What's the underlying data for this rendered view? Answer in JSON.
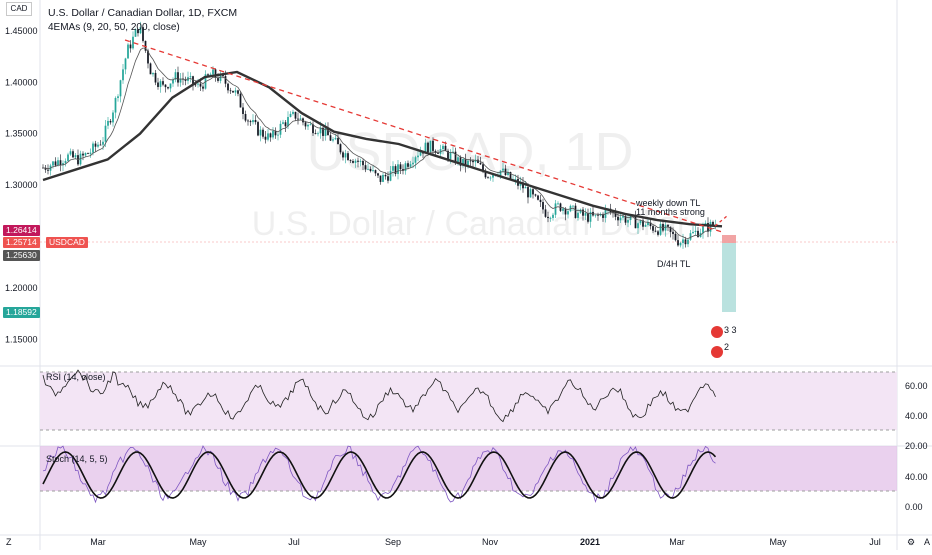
{
  "header": {
    "currency_badge": "CAD",
    "symbol_line": "U.S. Dollar / Canadian Dollar, 1D, FXCM",
    "indicator_line": "4EMAs (9, 20, 50, 200, close)"
  },
  "watermark": {
    "ticker": "USDCAD, 1D",
    "name": "U.S. Dollar / Canadian Dollar"
  },
  "price_badges": [
    {
      "label": "1.26414",
      "color": "#c2185b"
    },
    {
      "label": "1.25714",
      "color": "#ef5350"
    },
    {
      "label": "USDCAD",
      "color": "#ef5350"
    },
    {
      "label": "1.25630",
      "color": "#555555"
    },
    {
      "label": "1.18592",
      "color": "#26a69a"
    }
  ],
  "annotations": {
    "weekly_down": "weekly down TL",
    "months_strong": "11 months strong",
    "d4h": "D/4H TL"
  },
  "event_flags": {
    "top": "3 3",
    "bottom": "2"
  },
  "rsi": {
    "label": "RSI (14, close)",
    "ticks": [
      "60.00",
      "40.00",
      "20.00"
    ]
  },
  "stoch": {
    "label": "Stoch (14, 5, 5)",
    "ticks": [
      "40.00",
      "0.00"
    ]
  },
  "bottom_icons": {
    "left": "Z",
    "right_a": "⚙",
    "right_b": "A"
  },
  "colors": {
    "up": "#26a69a",
    "down": "#131722",
    "ema200": "#333333",
    "trend": "#e53935",
    "rsi_band": "#f3e5f5",
    "stoch_band": "#e1bee7"
  },
  "chart_data": {
    "type": "candlestick",
    "title": "U.S. Dollar / Canadian Dollar, 1D, FXCM",
    "ylim": [
      1.13,
      1.48
    ],
    "y_ticks": [
      "1.45000",
      "1.40000",
      "1.35000",
      "1.30000",
      "1.20000",
      "1.15000"
    ],
    "x_ticks": [
      "Mar",
      "May",
      "Jul",
      "Sep",
      "Nov",
      "2021",
      "Mar",
      "May",
      "Jul"
    ],
    "close_path": [
      1.317,
      1.322,
      1.328,
      1.325,
      1.333,
      1.345,
      1.38,
      1.43,
      1.455,
      1.41,
      1.395,
      1.405,
      1.402,
      1.395,
      1.408,
      1.402,
      1.39,
      1.365,
      1.352,
      1.345,
      1.36,
      1.368,
      1.358,
      1.355,
      1.345,
      1.332,
      1.325,
      1.317,
      1.305,
      1.312,
      1.318,
      1.33,
      1.338,
      1.335,
      1.328,
      1.32,
      1.322,
      1.31,
      1.315,
      1.305,
      1.298,
      1.285,
      1.272,
      1.28,
      1.275,
      1.27,
      1.268,
      1.275,
      1.27,
      1.265,
      1.262,
      1.258,
      1.255,
      1.245,
      1.252,
      1.258,
      1.262
    ],
    "downtrend_line": {
      "from": [
        "Mar",
        1.465
      ],
      "to": [
        "Apr 2021",
        1.258
      ]
    },
    "ema_200": [
      1.305,
      1.315,
      1.325,
      1.35,
      1.385,
      1.405,
      1.41,
      1.395,
      1.37,
      1.352,
      1.345,
      1.34,
      1.33,
      1.32,
      1.31,
      1.3,
      1.29,
      1.28,
      1.272,
      1.266,
      1.262,
      1.26
    ]
  }
}
